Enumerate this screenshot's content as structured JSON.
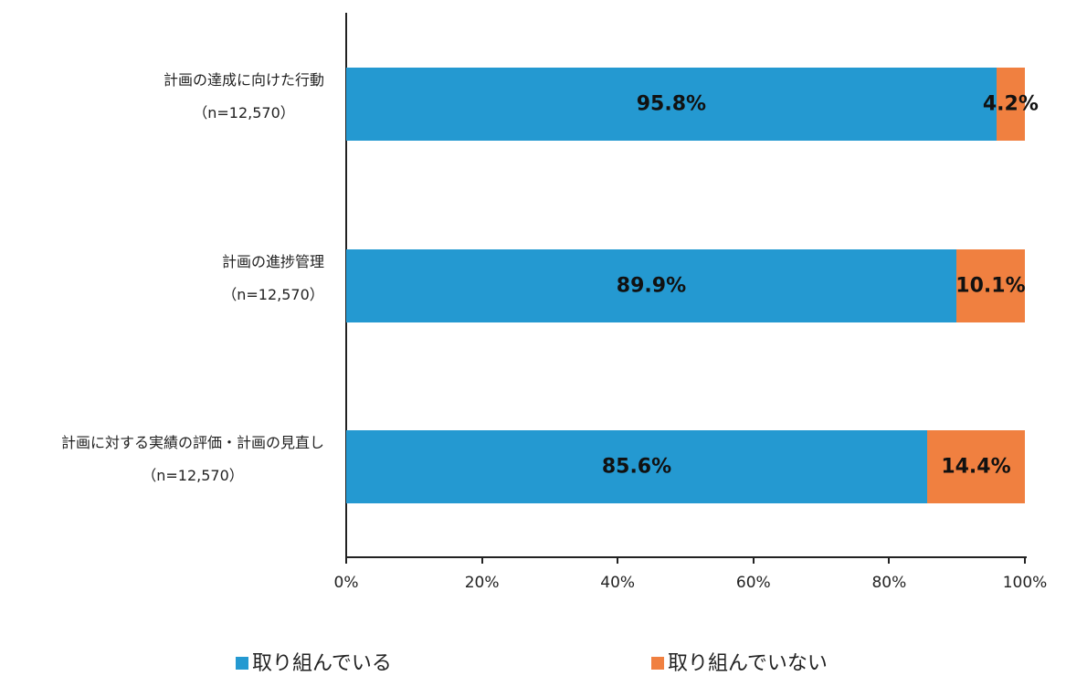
{
  "chart_data": {
    "type": "bar",
    "orientation": "horizontal",
    "stacked": true,
    "title": "",
    "xlabel": "",
    "ylabel": "",
    "xlim": [
      0,
      100
    ],
    "x_ticks": [
      "0%",
      "20%",
      "40%",
      "60%",
      "80%",
      "100%"
    ],
    "categories": [
      {
        "label": "計画の達成に向けた行動",
        "n": "（n=12,570）"
      },
      {
        "label": "計画の進捗管理",
        "n": "（n=12,570）"
      },
      {
        "label": "計画に対する実績の評価・計画の見直し",
        "n": "（n=12,570）"
      }
    ],
    "series": [
      {
        "name": "取り組んでいる",
        "color": "#2499d1",
        "values": [
          95.8,
          89.9,
          85.6
        ],
        "labels": [
          "95.8%",
          "89.9%",
          "85.6%"
        ]
      },
      {
        "name": "取り組んでいない",
        "color": "#f08040",
        "values": [
          4.2,
          10.1,
          14.4
        ],
        "labels": [
          "4.2%",
          "10.1%",
          "14.4%"
        ]
      }
    ],
    "legend_position": "bottom",
    "grid": false
  }
}
